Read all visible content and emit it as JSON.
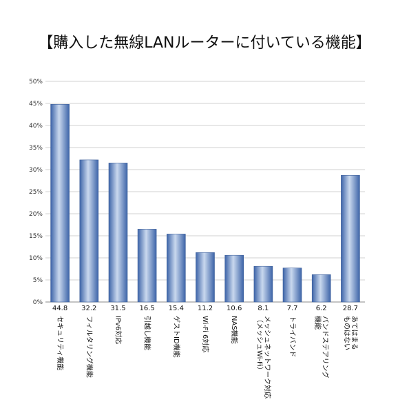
{
  "chart_data": {
    "type": "bar",
    "title": "【購入した無線LANルーターに付いている機能】",
    "xlabel": "",
    "ylabel": "",
    "ylim": [
      0,
      50
    ],
    "yticks": [
      "0%",
      "5%",
      "10%",
      "15%",
      "20%",
      "25%",
      "30%",
      "35%",
      "40%",
      "45%",
      "50%"
    ],
    "grid": true,
    "legend": "none",
    "bar_color": "#5b84c4",
    "categories": [
      [
        "セキュリティ機能"
      ],
      [
        "フィルタリング機能"
      ],
      [
        "IPv6対応"
      ],
      [
        "引越し機能"
      ],
      [
        "ゲストID機能"
      ],
      [
        "Wi-Fi 6対応"
      ],
      [
        "NAS機能"
      ],
      [
        "メッシュネットワーク対応",
        "（メッシュWi-Fi）"
      ],
      [
        "トライバンド"
      ],
      [
        "バンドステアリング",
        "機能"
      ],
      [
        "あてはまる",
        "ものはない"
      ]
    ],
    "values": [
      44.8,
      32.2,
      31.5,
      16.5,
      15.4,
      11.2,
      10.6,
      8.1,
      7.7,
      6.2,
      28.7
    ],
    "value_labels": [
      "44.8",
      "32.2",
      "31.5",
      "16.5",
      "15.4",
      "11.2",
      "10.6",
      "8.1",
      "7.7",
      "6.2",
      "28.7"
    ]
  }
}
